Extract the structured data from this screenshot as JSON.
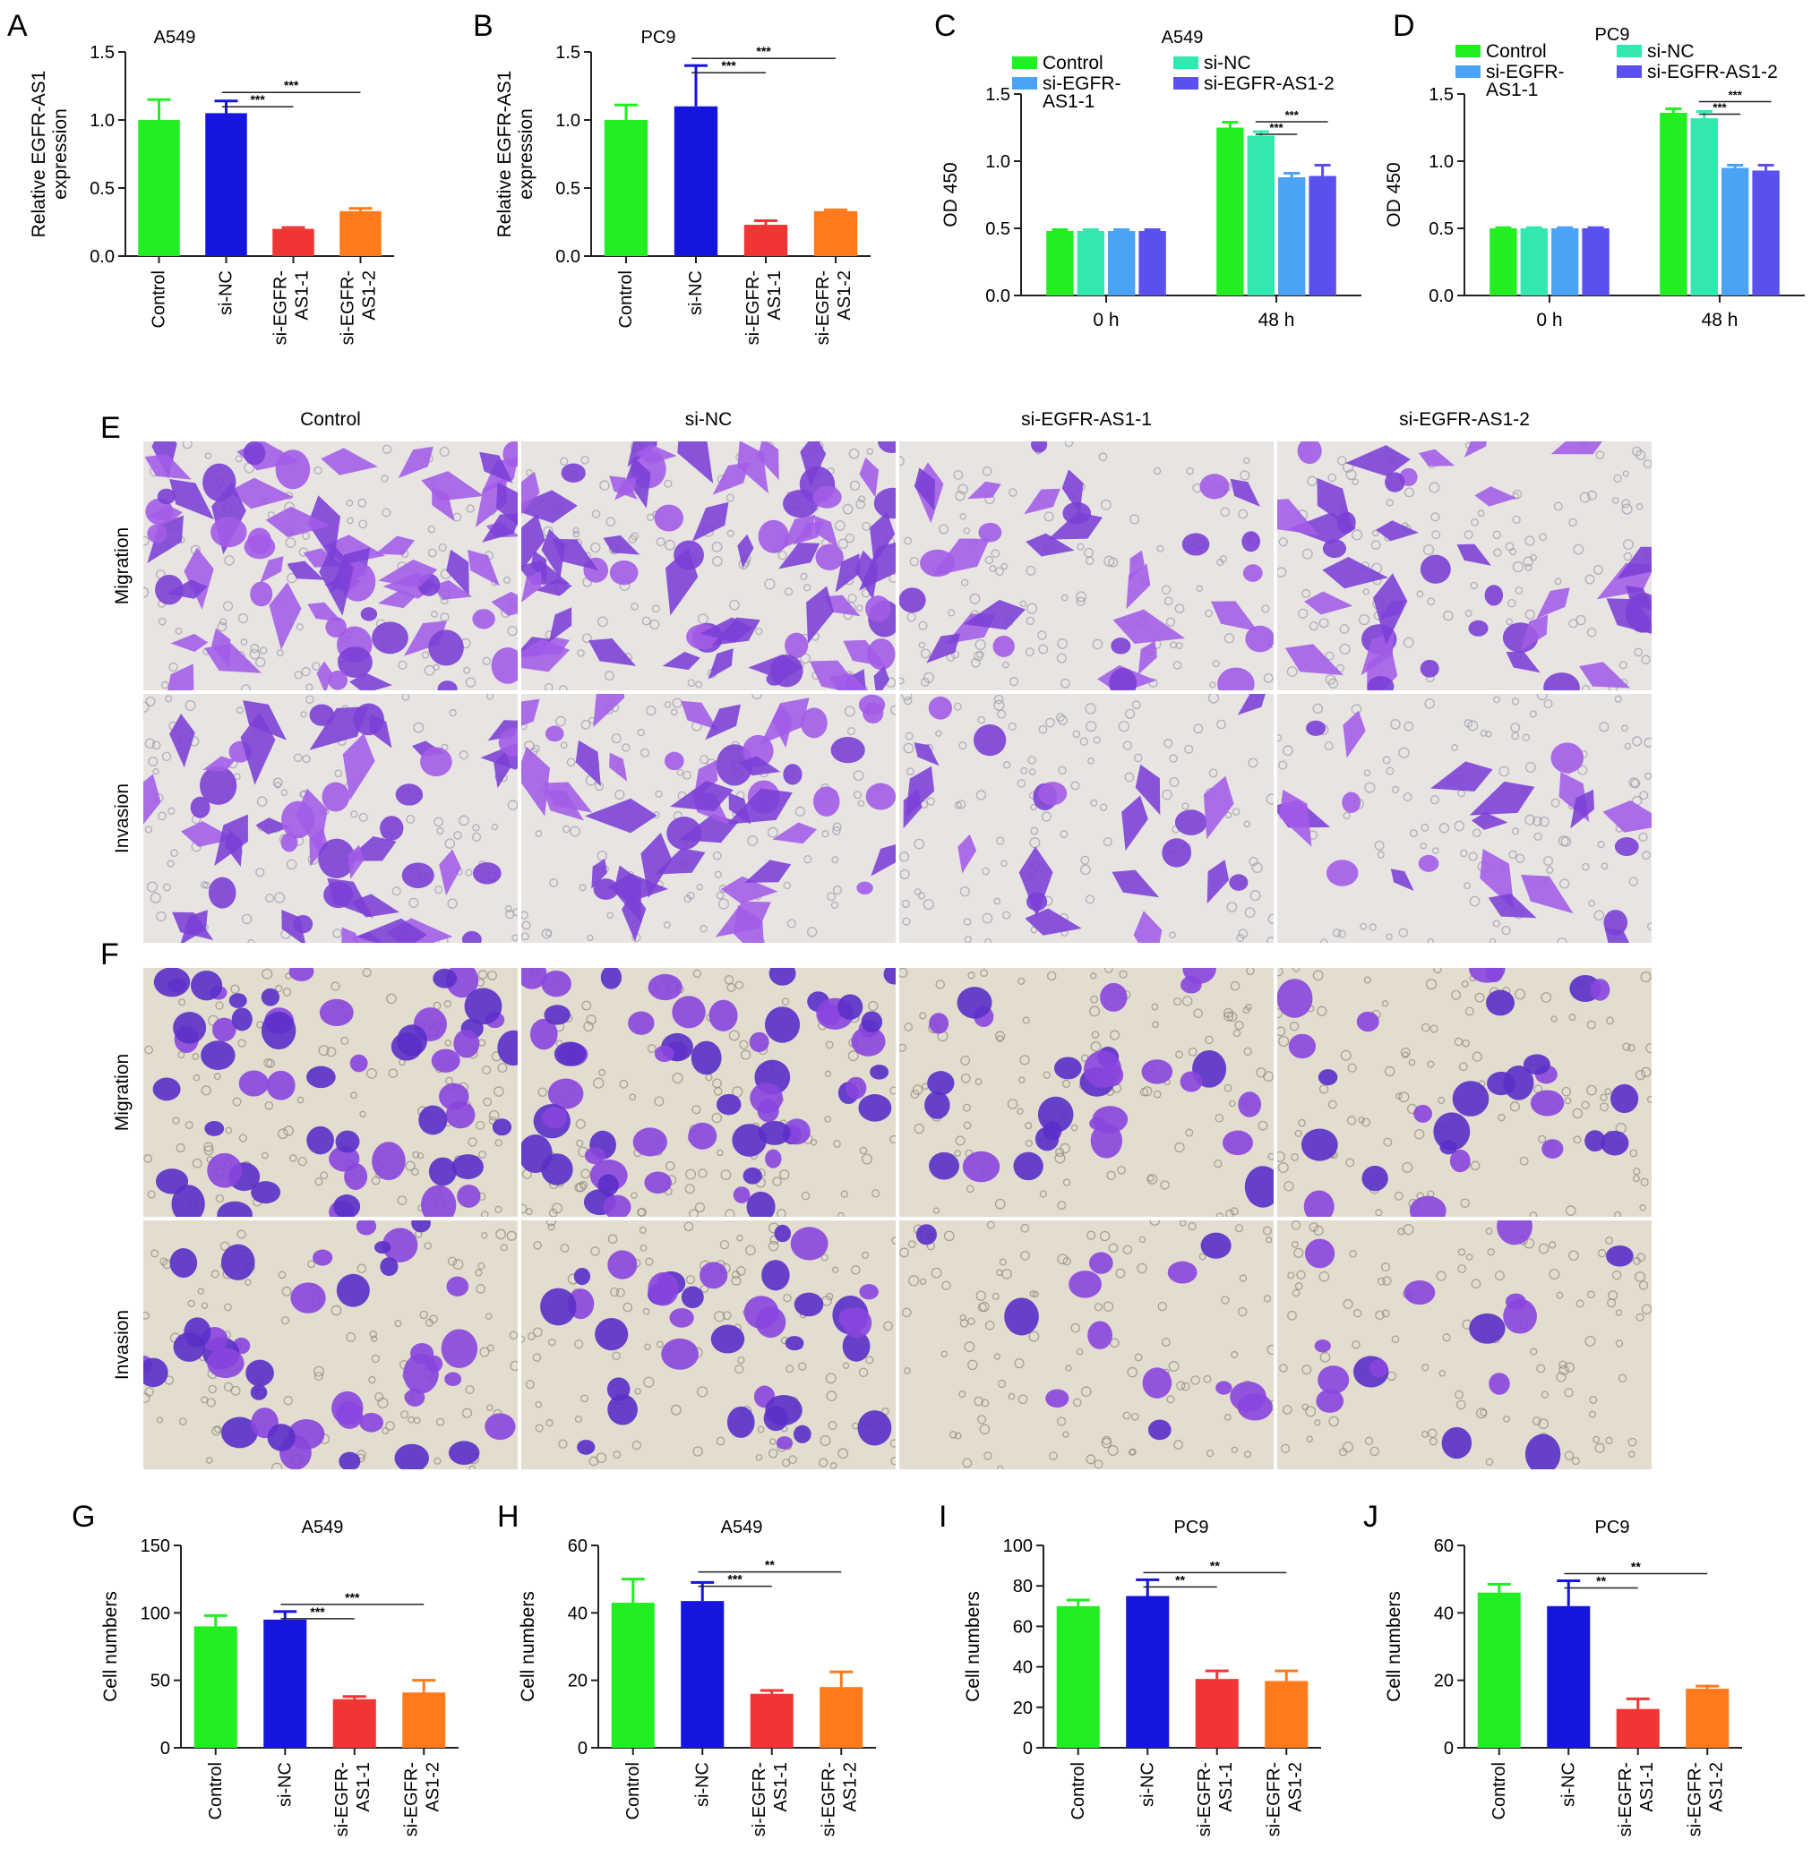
{
  "figure": {
    "microscopy": {
      "panels": [
        {
          "letter": "E",
          "rows": [
            "Migration",
            "Invasion"
          ],
          "bg": "#e7e4e2",
          "cell": "#7b3fd6",
          "cell_alt": "#a35be8",
          "debris": "#9a9aa8"
        },
        {
          "letter": "F",
          "rows": [
            "Migration",
            "Invasion"
          ],
          "bg": "#e2ddcf",
          "cell": "#5a2fc8",
          "cell_alt": "#8a45de",
          "debris": "#8d8a7e"
        }
      ],
      "columns": [
        "Control",
        "si-NC",
        "si-EGFR-AS1-1",
        "si-EGFR-AS1-2"
      ],
      "density": [
        [
          [
            1.0,
            1.0,
            0.45,
            0.55
          ],
          [
            0.7,
            0.65,
            0.3,
            0.3
          ]
        ],
        [
          [
            0.75,
            0.8,
            0.4,
            0.38
          ],
          [
            0.55,
            0.5,
            0.18,
            0.22
          ]
        ]
      ]
    }
  },
  "chart_data": [
    {
      "letter": "A",
      "type": "bar",
      "title": "A549",
      "ylabel": [
        "Relative EGFR-AS1",
        "expression"
      ],
      "ylim": [
        0,
        1.5
      ],
      "yticks": [
        "0.0",
        "0.5",
        "1.0",
        "1.5"
      ],
      "tick_values": [
        0,
        0.5,
        1.0,
        1.5
      ],
      "categories": [
        "Control",
        "si-NC",
        "si-EGFR-\nAS1-1",
        "si-EGFR-\nAS1-2"
      ],
      "values": [
        1.0,
        1.05,
        0.2,
        0.33
      ],
      "errors": [
        0.15,
        0.09,
        0.01,
        0.02
      ],
      "colors": [
        "#22ee22",
        "#1515dd",
        "#f03535",
        "#ff7a1a"
      ],
      "sig": [
        {
          "from": 1,
          "to": 2,
          "label": "***"
        },
        {
          "from": 1,
          "to": 3,
          "label": "***"
        }
      ]
    },
    {
      "letter": "B",
      "type": "bar",
      "title": "PC9",
      "ylabel": [
        "Relative EGFR-AS1",
        "expression"
      ],
      "ylim": [
        0,
        1.5
      ],
      "yticks": [
        "0.0",
        "0.5",
        "1.0",
        "1.5"
      ],
      "tick_values": [
        0,
        0.5,
        1.0,
        1.5
      ],
      "categories": [
        "Control",
        "si-NC",
        "si-EGFR-\nAS1-1",
        "si-EGFR-\nAS1-2"
      ],
      "values": [
        1.0,
        1.1,
        0.23,
        0.33
      ],
      "errors": [
        0.11,
        0.3,
        0.03,
        0.01
      ],
      "colors": [
        "#22ee22",
        "#1515dd",
        "#f03535",
        "#ff7a1a"
      ],
      "sig": [
        {
          "from": 1,
          "to": 2,
          "label": "***"
        },
        {
          "from": 1,
          "to": 3,
          "label": "***"
        }
      ]
    },
    {
      "letter": "C",
      "type": "bar",
      "title": "A549",
      "ylabel": [
        "OD 450"
      ],
      "ylim": [
        0,
        1.5
      ],
      "yticks": [
        "0.0",
        "0.5",
        "1.0",
        "1.5"
      ],
      "tick_values": [
        0,
        0.5,
        1.0,
        1.5
      ],
      "categories": [
        "0 h",
        "48 h"
      ],
      "series": [
        {
          "name": "Control",
          "values": [
            0.48,
            1.25
          ],
          "errors": [
            0.01,
            0.04
          ],
          "color": "#22ee22"
        },
        {
          "name": "si-NC",
          "values": [
            0.48,
            1.19
          ],
          "errors": [
            0.01,
            0.03
          ],
          "color": "#33e8b0"
        },
        {
          "name": "si-EGFR-\nAS1-1",
          "values": [
            0.48,
            0.88
          ],
          "errors": [
            0.01,
            0.03
          ],
          "color": "#4aa3f5"
        },
        {
          "name": "si-EGFR-AS1-2",
          "values": [
            0.48,
            0.89
          ],
          "errors": [
            0.01,
            0.08
          ],
          "color": "#5a50ee"
        }
      ],
      "sig": [
        {
          "group": 1,
          "from": 1,
          "to": 2,
          "label": "***"
        },
        {
          "group": 1,
          "from": 1,
          "to": 3,
          "label": "***"
        }
      ]
    },
    {
      "letter": "D",
      "type": "bar",
      "title": "PC9",
      "ylabel": [
        "OD 450"
      ],
      "ylim": [
        0,
        1.5
      ],
      "yticks": [
        "0.0",
        "0.5",
        "1.0",
        "1.5"
      ],
      "tick_values": [
        0,
        0.5,
        1.0,
        1.5
      ],
      "categories": [
        "0 h",
        "48 h"
      ],
      "series": [
        {
          "name": "Control",
          "values": [
            0.5,
            1.36
          ],
          "errors": [
            0.005,
            0.03
          ],
          "color": "#22ee22"
        },
        {
          "name": "si-NC",
          "values": [
            0.5,
            1.32
          ],
          "errors": [
            0.005,
            0.05
          ],
          "color": "#33e8b0"
        },
        {
          "name": "si-EGFR-\nAS1-1",
          "values": [
            0.5,
            0.95
          ],
          "errors": [
            0.005,
            0.02
          ],
          "color": "#4aa3f5"
        },
        {
          "name": "si-EGFR-AS1-2",
          "values": [
            0.5,
            0.93
          ],
          "errors": [
            0.005,
            0.04
          ],
          "color": "#5a50ee"
        }
      ],
      "sig": [
        {
          "group": 1,
          "from": 1,
          "to": 2,
          "label": "***"
        },
        {
          "group": 1,
          "from": 1,
          "to": 3,
          "label": "***"
        }
      ]
    },
    {
      "letter": "G",
      "type": "bar",
      "title": "A549",
      "ylabel": [
        "Cell numbers"
      ],
      "ylim": [
        0,
        150
      ],
      "yticks": [
        "0",
        "50",
        "100",
        "150"
      ],
      "tick_values": [
        0,
        50,
        100,
        150
      ],
      "categories": [
        "Control",
        "si-NC",
        "si-EGFR-\nAS1-1",
        "si-EGFR-\nAS1-2"
      ],
      "values": [
        90,
        95,
        36,
        41
      ],
      "errors": [
        8,
        6,
        2,
        9
      ],
      "colors": [
        "#22ee22",
        "#1515dd",
        "#f03535",
        "#ff7a1a"
      ],
      "sig": [
        {
          "from": 1,
          "to": 2,
          "label": "***"
        },
        {
          "from": 1,
          "to": 3,
          "label": "***"
        }
      ]
    },
    {
      "letter": "H",
      "type": "bar",
      "title": "A549",
      "ylabel": [
        "Cell numbers"
      ],
      "ylim": [
        0,
        60
      ],
      "yticks": [
        "0",
        "20",
        "40",
        "60"
      ],
      "tick_values": [
        0,
        20,
        40,
        60
      ],
      "categories": [
        "Control",
        "si-NC",
        "si-EGFR-\nAS1-1",
        "si-EGFR-\nAS1-2"
      ],
      "values": [
        43,
        43.5,
        16,
        18
      ],
      "errors": [
        7,
        5.5,
        1,
        4.5
      ],
      "colors": [
        "#22ee22",
        "#1515dd",
        "#f03535",
        "#ff7a1a"
      ],
      "sig": [
        {
          "from": 1,
          "to": 2,
          "label": "***"
        },
        {
          "from": 1,
          "to": 3,
          "label": "**"
        }
      ]
    },
    {
      "letter": "I",
      "type": "bar",
      "title": "PC9",
      "ylabel": [
        "Cell numbers"
      ],
      "ylim": [
        0,
        100
      ],
      "yticks": [
        "0",
        "20",
        "40",
        "60",
        "80",
        "100"
      ],
      "tick_values": [
        0,
        20,
        40,
        60,
        80,
        100
      ],
      "categories": [
        "Control",
        "si-NC",
        "si-EGFR-\nAS1-1",
        "si-EGFR-\nAS1-2"
      ],
      "values": [
        70,
        75,
        34,
        33
      ],
      "errors": [
        3,
        8,
        4,
        5
      ],
      "colors": [
        "#22ee22",
        "#1515dd",
        "#f03535",
        "#ff7a1a"
      ],
      "sig": [
        {
          "from": 1,
          "to": 2,
          "label": "**"
        },
        {
          "from": 1,
          "to": 3,
          "label": "**"
        }
      ]
    },
    {
      "letter": "J",
      "type": "bar",
      "title": "PC9",
      "ylabel": [
        "Cell numbers"
      ],
      "ylim": [
        0,
        60
      ],
      "yticks": [
        "0",
        "20",
        "40",
        "60"
      ],
      "tick_values": [
        0,
        20,
        40,
        60
      ],
      "categories": [
        "Control",
        "si-NC",
        "si-EGFR-\nAS1-1",
        "si-EGFR-\nAS1-2"
      ],
      "values": [
        46,
        42,
        11.5,
        17.5
      ],
      "errors": [
        2.5,
        7.5,
        3,
        0.8
      ],
      "colors": [
        "#22ee22",
        "#1515dd",
        "#f03535",
        "#ff7a1a"
      ],
      "sig": [
        {
          "from": 1,
          "to": 2,
          "label": "**"
        },
        {
          "from": 1,
          "to": 3,
          "label": "**"
        }
      ]
    }
  ]
}
